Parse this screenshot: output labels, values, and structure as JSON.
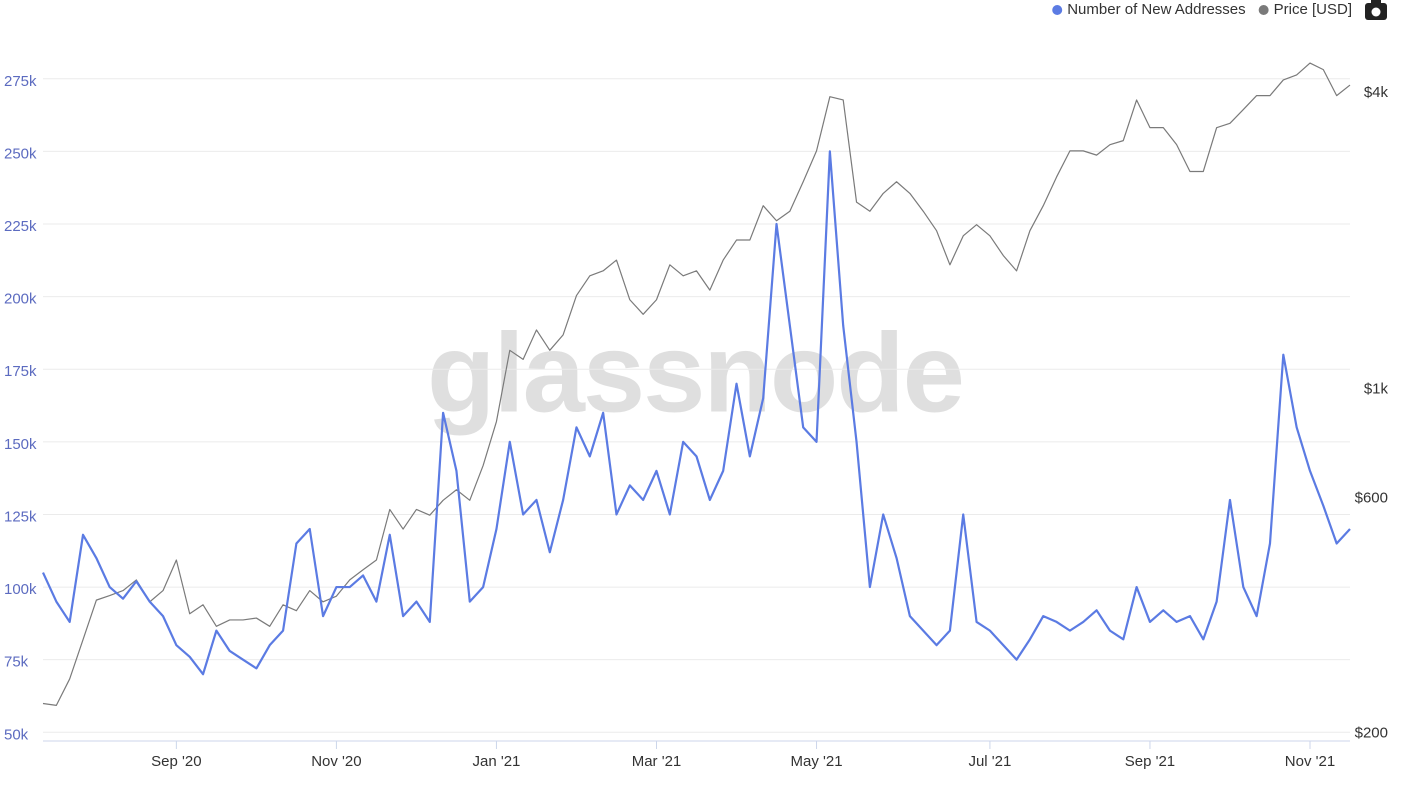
{
  "chart_data": {
    "type": "line",
    "watermark": "glassnode",
    "categories": [
      null,
      null,
      null,
      null,
      null,
      null,
      null,
      null,
      null,
      null,
      "Sep '20",
      null,
      null,
      null,
      null,
      null,
      null,
      null,
      null,
      null,
      null,
      null,
      "Nov '20",
      null,
      null,
      null,
      null,
      null,
      null,
      null,
      null,
      null,
      null,
      null,
      "Jan '21",
      null,
      null,
      null,
      null,
      null,
      null,
      null,
      null,
      null,
      null,
      null,
      "Mar '21",
      null,
      null,
      null,
      null,
      null,
      null,
      null,
      null,
      null,
      null,
      null,
      "May '21",
      null,
      null,
      null,
      null,
      null,
      null,
      null,
      null,
      null,
      null,
      null,
      null,
      "Jul '21",
      null,
      null,
      null,
      null,
      null,
      null,
      null,
      null,
      null,
      null,
      null,
      "Sep '21",
      null,
      null,
      null,
      null,
      null,
      null,
      null,
      null,
      null,
      null,
      null,
      "Nov '21",
      null,
      null,
      null
    ],
    "series": [
      {
        "name": "Number of New Addresses",
        "color": "#5b7be3",
        "axis": "y",
        "values": [
          105000,
          95000,
          88000,
          118000,
          110000,
          100000,
          96000,
          102000,
          95000,
          90000,
          80000,
          76000,
          70000,
          85000,
          78000,
          75000,
          72000,
          80000,
          85000,
          115000,
          120000,
          90000,
          100000,
          100000,
          104000,
          95000,
          118000,
          90000,
          95000,
          88000,
          160000,
          140000,
          95000,
          100000,
          120000,
          150000,
          125000,
          130000,
          112000,
          130000,
          155000,
          145000,
          160000,
          125000,
          135000,
          130000,
          140000,
          125000,
          150000,
          145000,
          130000,
          140000,
          170000,
          145000,
          165000,
          225000,
          190000,
          155000,
          150000,
          250000,
          190000,
          150000,
          100000,
          125000,
          110000,
          90000,
          85000,
          80000,
          85000,
          125000,
          88000,
          85000,
          80000,
          75000,
          82000,
          90000,
          88000,
          85000,
          88000,
          92000,
          85000,
          82000,
          100000,
          88000,
          92000,
          88000,
          90000,
          82000,
          95000,
          130000,
          100000,
          90000,
          115000,
          180000,
          155000,
          140000,
          128000,
          115000,
          120000
        ]
      },
      {
        "name": "Price [USD]",
        "color": "#7a7a7a",
        "axis": "y2",
        "values": [
          230,
          228,
          258,
          310,
          373,
          381,
          390,
          410,
          370,
          390,
          450,
          350,
          365,
          330,
          340,
          340,
          343,
          330,
          365,
          355,
          390,
          370,
          380,
          410,
          430,
          450,
          570,
          520,
          570,
          555,
          595,
          625,
          595,
          700,
          860,
          1200,
          1150,
          1320,
          1200,
          1290,
          1550,
          1700,
          1740,
          1830,
          1520,
          1420,
          1520,
          1790,
          1700,
          1740,
          1590,
          1830,
          2010,
          2010,
          2360,
          2200,
          2300,
          2640,
          3050,
          3930,
          3870,
          2400,
          2300,
          2500,
          2640,
          2500,
          2300,
          2100,
          1790,
          2050,
          2160,
          2050,
          1870,
          1740,
          2100,
          2360,
          2700,
          3050,
          3050,
          2990,
          3140,
          3200,
          3870,
          3400,
          3400,
          3140,
          2770,
          2770,
          3400,
          3470,
          3700,
          3950,
          3950,
          4250,
          4350,
          4600,
          4460,
          3950,
          4150
        ]
      }
    ],
    "ylim": [
      47000,
      298000
    ],
    "yticks": [
      {
        "value": 50000,
        "label": "50k"
      },
      {
        "value": 75000,
        "label": "75k"
      },
      {
        "value": 100000,
        "label": "100k"
      },
      {
        "value": 125000,
        "label": "125k"
      },
      {
        "value": 150000,
        "label": "150k"
      },
      {
        "value": 175000,
        "label": "175k"
      },
      {
        "value": 200000,
        "label": "200k"
      },
      {
        "value": 225000,
        "label": "225k"
      },
      {
        "value": 250000,
        "label": "250k"
      },
      {
        "value": 275000,
        "label": "275k"
      }
    ],
    "y2lim": [
      193,
      5840
    ],
    "y2scale": "log",
    "y2ticks": [
      {
        "value": 200,
        "label": "$200"
      },
      {
        "value": 600,
        "label": "$600"
      },
      {
        "value": 1000,
        "label": "$1k"
      },
      {
        "value": 4000,
        "label": "$4k"
      }
    ],
    "grid": true,
    "legend": "top-right"
  }
}
